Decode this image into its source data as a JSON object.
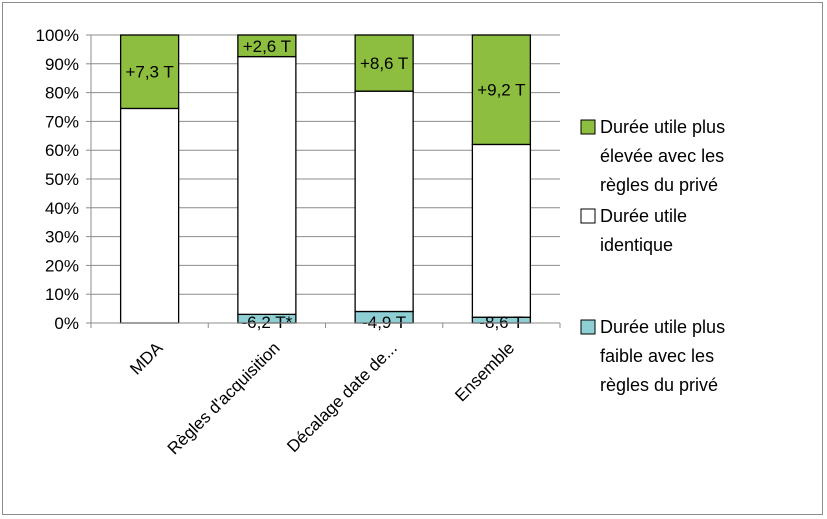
{
  "chart_data": {
    "type": "bar",
    "stacked": true,
    "percent": true,
    "categories": [
      "MDA",
      "Règles d'acquisition",
      "Décalage date de...",
      "Ensemble"
    ],
    "series": [
      {
        "name": "Durée utile plus faible avec les règles du privé",
        "color": "#8ecfd3",
        "values": [
          0,
          3,
          4,
          2
        ],
        "labels": [
          "",
          "-6,2 T*",
          "-4,9 T",
          "-8,6 T"
        ]
      },
      {
        "name": "Durée utile identique",
        "color": "#ffffff",
        "values": [
          74.5,
          89.5,
          76.5,
          60
        ],
        "labels": [
          "",
          "",
          "",
          ""
        ]
      },
      {
        "name": "Durée utile plus élevée avec les règles du privé",
        "color": "#8dbe3f",
        "values": [
          25.5,
          7.5,
          19.5,
          38
        ],
        "labels": [
          "+7,3 T",
          "+2,6 T",
          "+8,6 T",
          "+9,2 T"
        ]
      }
    ],
    "legend_order": [
      2,
      1,
      0
    ],
    "legend_lines": [
      [
        "Durée utile plus",
        "élevée avec les",
        "règles du privé"
      ],
      [
        "Durée utile",
        "identique"
      ],
      [
        "Durée utile plus",
        "faible avec les",
        "règles du privé"
      ]
    ],
    "y_ticks": [
      "0%",
      "10%",
      "20%",
      "30%",
      "40%",
      "50%",
      "60%",
      "70%",
      "80%",
      "90%",
      "100%"
    ],
    "ylim": [
      0,
      100
    ],
    "grid": true,
    "legend_position": "right"
  }
}
